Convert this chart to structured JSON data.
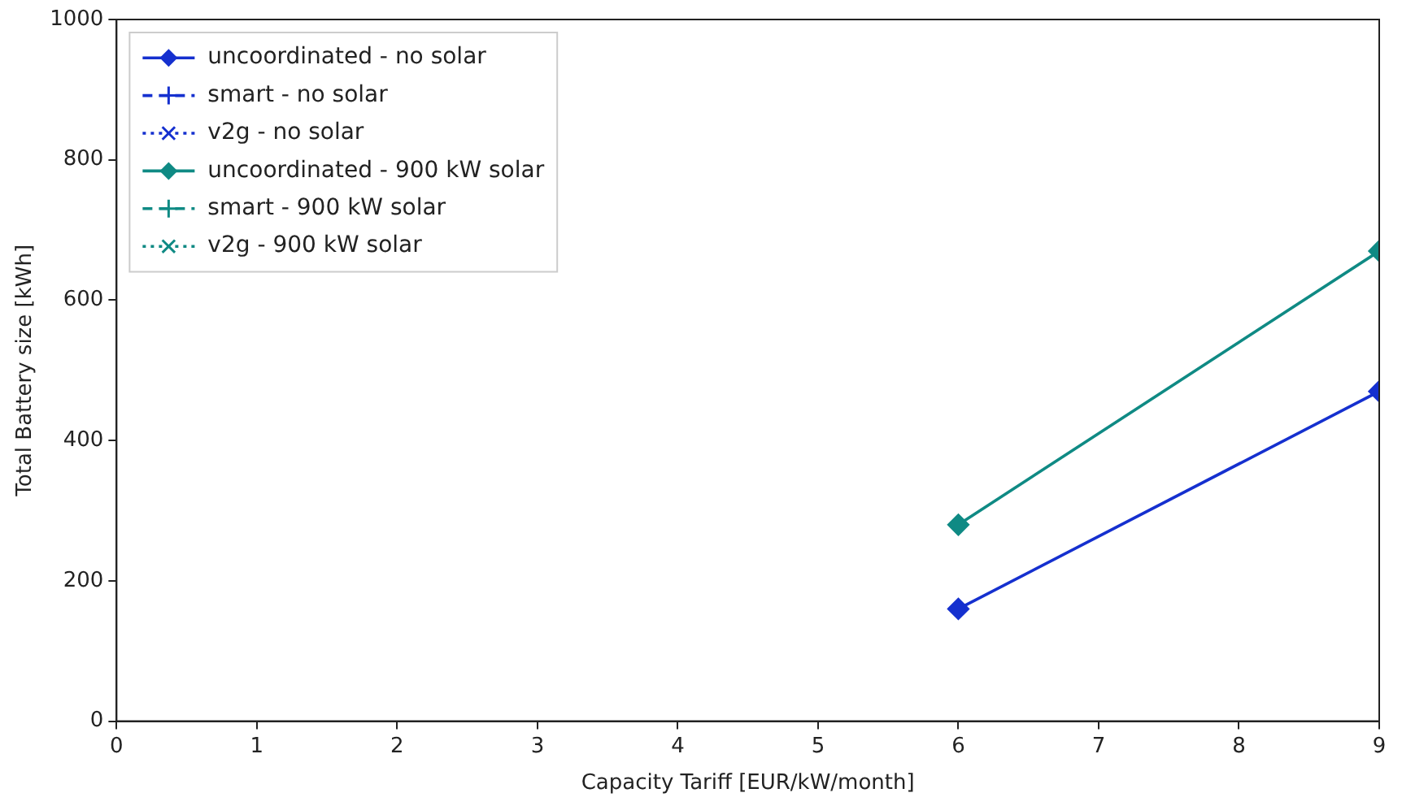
{
  "chart_data": {
    "type": "line",
    "xlabel": "Capacity Tariff [EUR/kW/month]",
    "ylabel": "Total Battery size [kWh]",
    "x": [
      6,
      9
    ],
    "xlim": [
      0,
      9
    ],
    "xticks": [
      0,
      1,
      2,
      3,
      4,
      5,
      6,
      7,
      8,
      9
    ],
    "ylim": [
      0,
      1000
    ],
    "yticks": [
      0,
      200,
      400,
      600,
      800,
      1000
    ],
    "grid": false,
    "legend": "top left",
    "series": [
      {
        "name": "uncoordinated - no solar",
        "color": "#1530cf",
        "values": [
          160,
          470
        ],
        "marker": "diamond",
        "line_style": "solid"
      },
      {
        "name": "smart - no solar",
        "color": "#1530cf",
        "values": [
          null,
          null
        ],
        "marker": "cross",
        "line_style": "dashed"
      },
      {
        "name": "v2g - no solar",
        "color": "#1530cf",
        "values": [
          null,
          null
        ],
        "marker": "x",
        "line_style": "dotted"
      },
      {
        "name": "uncoordinated - 900 kW solar",
        "color": "#0f8a84",
        "values": [
          280,
          670
        ],
        "marker": "diamond",
        "line_style": "solid"
      },
      {
        "name": "smart - 900 kW solar",
        "color": "#0f8a84",
        "values": [
          null,
          null
        ],
        "marker": "cross",
        "line_style": "dashed"
      },
      {
        "name": "v2g - 900 kW solar",
        "color": "#0f8a84",
        "values": [
          null,
          null
        ],
        "marker": "x",
        "line_style": "dotted"
      }
    ]
  }
}
